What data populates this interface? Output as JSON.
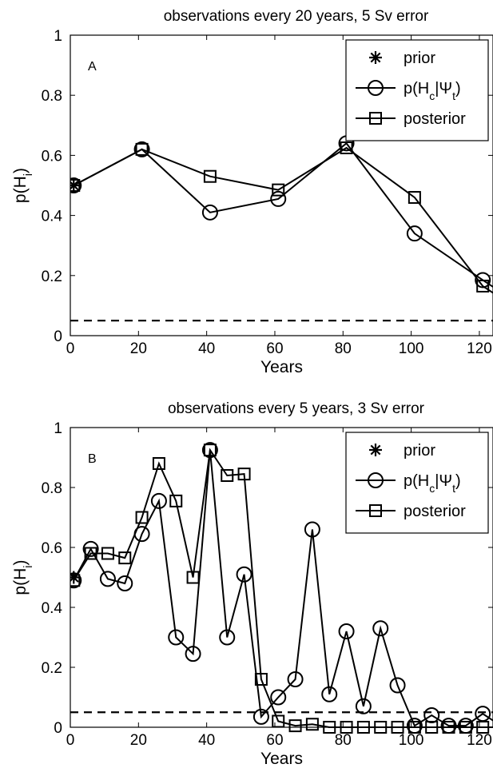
{
  "chart_data": [
    {
      "type": "line",
      "panel": "A",
      "title": "observations every 20 years, 5 Sv error",
      "xlabel": "Years",
      "ylabel": "p(H_i)",
      "xlim": [
        0,
        124
      ],
      "ylim": [
        0,
        1
      ],
      "xticks": [
        0,
        20,
        40,
        60,
        80,
        100,
        120
      ],
      "yticks": [
        0,
        0.2,
        0.4,
        0.6,
        0.8,
        1
      ],
      "xtick_labels": [
        "0",
        "20",
        "40",
        "60",
        "80",
        "100",
        "120"
      ],
      "ytick_labels": [
        "0",
        "0.2",
        "0.4",
        "0.6",
        "0.8",
        "1"
      ],
      "threshold": 0.05,
      "legend_position": "top-right",
      "series": [
        {
          "name": "prior",
          "marker": "asterisk",
          "x": [
            1
          ],
          "y": [
            0.5
          ]
        },
        {
          "name": "p(H_c|Ψ_t)",
          "marker": "circle",
          "x": [
            1,
            21,
            41,
            61,
            81,
            101,
            121,
            125
          ],
          "y": [
            0.5,
            0.62,
            0.41,
            0.455,
            0.64,
            0.34,
            0.185,
            0.155
          ]
        },
        {
          "name": "posterior",
          "marker": "square",
          "x": [
            1,
            21,
            41,
            61,
            81,
            101,
            121,
            125
          ],
          "y": [
            0.5,
            0.62,
            0.53,
            0.485,
            0.625,
            0.46,
            0.165,
            0.135
          ]
        }
      ]
    },
    {
      "type": "line",
      "panel": "B",
      "title": "observations every 5 years, 3 Sv error",
      "xlabel": "Years",
      "ylabel": "p(H_i)",
      "xlim": [
        0,
        124
      ],
      "ylim": [
        0,
        1
      ],
      "xticks": [
        0,
        20,
        40,
        60,
        80,
        100,
        120
      ],
      "yticks": [
        0,
        0.2,
        0.4,
        0.6,
        0.8,
        1
      ],
      "xtick_labels": [
        "0",
        "20",
        "40",
        "60",
        "80",
        "100",
        "120"
      ],
      "ytick_labels": [
        "0",
        "0.2",
        "0.4",
        "0.6",
        "0.8",
        "1"
      ],
      "threshold": 0.05,
      "legend_position": "top-right",
      "series": [
        {
          "name": "prior",
          "marker": "asterisk",
          "x": [
            1
          ],
          "y": [
            0.5
          ]
        },
        {
          "name": "p(H_c|Ψ_t)",
          "marker": "circle",
          "x": [
            1,
            6,
            11,
            16,
            21,
            26,
            31,
            36,
            41,
            46,
            51,
            56,
            61,
            66,
            71,
            76,
            81,
            86,
            91,
            96,
            101,
            106,
            111,
            116,
            121,
            125
          ],
          "y": [
            0.49,
            0.595,
            0.495,
            0.48,
            0.645,
            0.755,
            0.3,
            0.245,
            0.925,
            0.3,
            0.51,
            0.035,
            0.1,
            0.16,
            0.66,
            0.11,
            0.32,
            0.07,
            0.33,
            0.14,
            0.005,
            0.04,
            0.005,
            0.005,
            0.045,
            0.015
          ]
        },
        {
          "name": "posterior",
          "marker": "square",
          "x": [
            1,
            6,
            11,
            16,
            21,
            26,
            31,
            36,
            41,
            46,
            51,
            56,
            61,
            66,
            71,
            76,
            81,
            86,
            91,
            96,
            101,
            106,
            111,
            116,
            121,
            125
          ],
          "y": [
            0.49,
            0.58,
            0.58,
            0.565,
            0.7,
            0.88,
            0.755,
            0.5,
            0.925,
            0.84,
            0.845,
            0.16,
            0.02,
            0.005,
            0.01,
            0.0,
            0.0,
            0.0,
            0.0,
            0.0,
            0.0,
            0.0,
            0.0,
            0.0,
            0.0,
            0.0
          ]
        }
      ]
    }
  ]
}
